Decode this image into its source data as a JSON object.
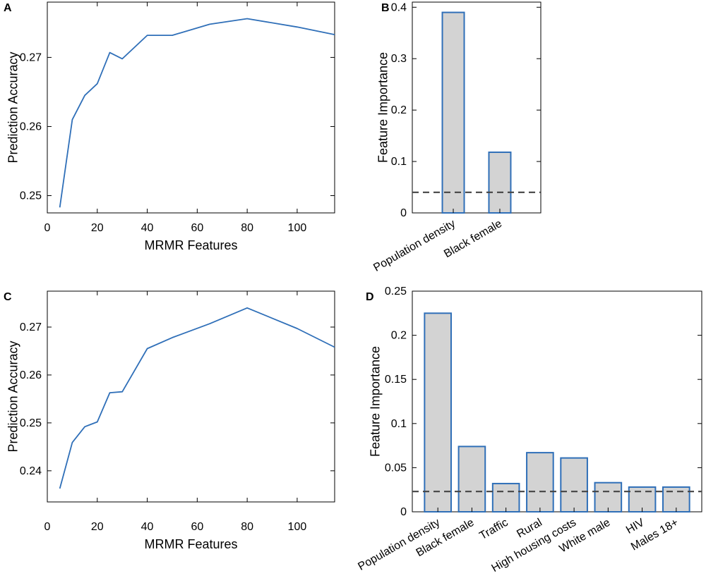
{
  "chart_data": [
    {
      "panel": "A",
      "type": "line",
      "xlabel": "MRMR Features",
      "ylabel": "Prediction Accuracy",
      "xlim": [
        0,
        115
      ],
      "ylim": [
        0.2475,
        0.278
      ],
      "xticks": [
        0,
        20,
        40,
        60,
        80,
        100
      ],
      "xtick_labels": [
        "0",
        "20",
        "40",
        "60",
        "80",
        "100"
      ],
      "yticks": [
        0.25,
        0.26,
        0.27
      ],
      "ytick_labels": [
        "0.25",
        "0.26",
        "0.27"
      ],
      "line_color": "#2f6fb8",
      "series": [
        {
          "x": [
            5,
            10,
            15,
            20,
            25,
            30,
            40,
            50,
            65,
            80,
            100,
            115
          ],
          "y": [
            0.2483,
            0.261,
            0.2645,
            0.2662,
            0.2707,
            0.2698,
            0.2732,
            0.2732,
            0.2748,
            0.2756,
            0.2744,
            0.2733
          ]
        }
      ]
    },
    {
      "panel": "B",
      "type": "bar",
      "xlabel": "",
      "ylabel": "Feature Importance",
      "ylim": [
        0,
        0.41
      ],
      "yticks": [
        0,
        0.1,
        0.2,
        0.3,
        0.4
      ],
      "ytick_labels": [
        "0",
        "0.1",
        "0.2",
        "0.3",
        "0.4"
      ],
      "categories": [
        "Population density",
        "Black female"
      ],
      "values": [
        0.39,
        0.118
      ],
      "threshold": 0.04,
      "bar_fill": "#d3d3d3",
      "bar_edge": "#2f6fb8"
    },
    {
      "panel": "C",
      "type": "line",
      "xlabel": "MRMR Features",
      "ylabel": "Prediction Accuracy",
      "xlim": [
        0,
        115
      ],
      "ylim": [
        0.2335,
        0.2775
      ],
      "xticks": [
        0,
        20,
        40,
        60,
        80,
        100
      ],
      "xtick_labels": [
        "0",
        "20",
        "40",
        "60",
        "80",
        "100"
      ],
      "yticks": [
        0.24,
        0.25,
        0.26,
        0.27
      ],
      "ytick_labels": [
        "0.24",
        "0.25",
        "0.26",
        "0.27"
      ],
      "line_color": "#2f6fb8",
      "series": [
        {
          "x": [
            5,
            10,
            15,
            20,
            25,
            30,
            40,
            50,
            65,
            80,
            100,
            115
          ],
          "y": [
            0.2363,
            0.2459,
            0.2492,
            0.2502,
            0.2563,
            0.2565,
            0.2655,
            0.2678,
            0.2707,
            0.274,
            0.2697,
            0.2658
          ]
        }
      ]
    },
    {
      "panel": "D",
      "type": "bar",
      "xlabel": "",
      "ylabel": "Feature Importance",
      "ylim": [
        0,
        0.25
      ],
      "yticks": [
        0,
        0.05,
        0.1,
        0.15,
        0.2,
        0.25
      ],
      "ytick_labels": [
        "0",
        "0.05",
        "0.1",
        "0.15",
        "0.2",
        "0.25"
      ],
      "categories": [
        "Population density",
        "Black female",
        "Traffic",
        "Rural",
        "High housing costs",
        "White male",
        "HIV",
        "Males 18+"
      ],
      "values": [
        0.225,
        0.074,
        0.032,
        0.067,
        0.061,
        0.033,
        0.028,
        0.028
      ],
      "threshold": 0.023,
      "bar_fill": "#d3d3d3",
      "bar_edge": "#2f6fb8"
    }
  ]
}
